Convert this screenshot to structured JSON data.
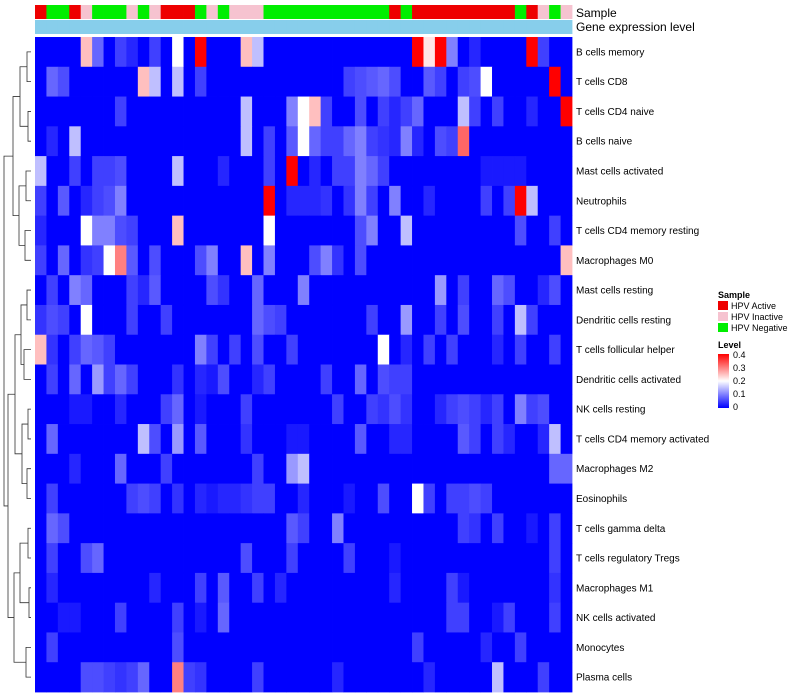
{
  "chart_data": {
    "type": "heatmap",
    "annotation_titles": {
      "sample": "Sample",
      "gene_expression": "Gene expression level"
    },
    "rows": [
      "B cells memory",
      "T cells CD8",
      "T cells CD4 naive",
      "B cells naive",
      "Mast cells activated",
      "Neutrophils",
      "T cells CD4 memory resting",
      "Macrophages M0",
      "Mast cells resting",
      "Dendritic cells resting",
      "T cells follicular helper",
      "Dendritic cells activated",
      "NK cells resting",
      "T cells CD4 memory activated",
      "Macrophages M2",
      "Eosinophils",
      "T cells gamma delta",
      "T cells regulatory  Tregs",
      "Macrophages M1",
      "NK cells activated",
      "Monocytes",
      "Plasma cells"
    ],
    "sample_groups": [
      "A",
      "N",
      "N",
      "A",
      "I",
      "N",
      "N",
      "N",
      "I",
      "N",
      "I",
      "A",
      "A",
      "A",
      "N",
      "I",
      "N",
      "I",
      "I",
      "I",
      "N",
      "N",
      "N",
      "N",
      "N",
      "N",
      "N",
      "N",
      "N",
      "N",
      "N",
      "A",
      "N",
      "A",
      "A",
      "A",
      "A",
      "A",
      "A",
      "A",
      "A",
      "A",
      "N",
      "A",
      "I",
      "N",
      "I"
    ],
    "gene_expression_level": [
      0.9,
      0.9,
      0.9,
      0.9,
      0.9,
      0.9,
      0.9,
      0.9,
      0.9,
      0.9,
      0.9,
      0.9,
      0.9,
      0.9,
      0.9,
      0.9,
      0.9,
      0.9,
      0.9,
      0.9,
      0.9,
      0.9,
      0.9,
      0.9,
      0.9,
      0.9,
      0.9,
      0.9,
      0.9,
      0.9,
      0.9,
      0.9,
      0.9,
      0.9,
      0.9,
      0.9,
      0.9,
      0.9,
      0.9,
      0.9,
      0.9,
      0.9,
      0.9,
      0.9,
      0.9,
      0.9,
      0.9
    ],
    "values": [
      [
        0,
        0,
        0,
        0,
        0.25,
        0.08,
        0,
        0.05,
        0.03,
        0,
        0.05,
        0,
        0.2,
        0,
        0.4,
        0,
        0,
        0,
        0.25,
        0.15,
        0,
        0,
        0,
        0,
        0,
        0,
        0,
        0,
        0,
        0,
        0,
        0,
        0,
        0.4,
        0.22,
        0.4,
        0.1,
        0,
        0.03,
        0,
        0,
        0,
        0,
        0.4,
        0.05,
        0,
        0
      ],
      [
        0,
        0.08,
        0.06,
        0,
        0,
        0,
        0,
        0,
        0,
        0.25,
        0.15,
        0,
        0.15,
        0,
        0.05,
        0,
        0,
        0,
        0,
        0,
        0,
        0,
        0,
        0,
        0,
        0,
        0,
        0.05,
        0.06,
        0.07,
        0.08,
        0.06,
        0,
        0,
        0.07,
        0.05,
        0,
        0.05,
        0.06,
        0.2,
        0,
        0,
        0,
        0,
        0,
        0.4,
        0
      ],
      [
        0,
        0,
        0,
        0,
        0,
        0,
        0,
        0.05,
        0,
        0,
        0,
        0,
        0,
        0,
        0,
        0,
        0,
        0,
        0.15,
        0,
        0,
        0,
        0.1,
        0.2,
        0.25,
        0.05,
        0,
        0,
        0.06,
        0,
        0.05,
        0.03,
        0.05,
        0.08,
        0,
        0,
        0,
        0.15,
        0.05,
        0,
        0.05,
        0,
        0,
        0.03,
        0,
        0,
        0.4
      ],
      [
        0,
        0.03,
        0,
        0.15,
        0,
        0,
        0,
        0,
        0,
        0,
        0,
        0,
        0,
        0,
        0,
        0,
        0,
        0,
        0.15,
        0,
        0.05,
        0,
        0.07,
        0.2,
        0.08,
        0.05,
        0.05,
        0.08,
        0.1,
        0.05,
        0.04,
        0.03,
        0.1,
        0.03,
        0,
        0.06,
        0.05,
        0.32,
        0,
        0,
        0,
        0,
        0,
        0,
        0,
        0,
        0
      ],
      [
        0.15,
        0,
        0,
        0.05,
        0,
        0.05,
        0.05,
        0.06,
        0,
        0,
        0,
        0,
        0.15,
        0,
        0,
        0,
        0.03,
        0,
        0,
        0,
        0.05,
        0,
        0.4,
        0,
        0.03,
        0,
        0.05,
        0.05,
        0.1,
        0.08,
        0.05,
        0,
        0,
        0,
        0,
        0,
        0,
        0,
        0,
        0.02,
        0.02,
        0.02,
        0.02,
        0,
        0,
        0,
        0
      ],
      [
        0.05,
        0,
        0.07,
        0,
        0.03,
        0.05,
        0.06,
        0.1,
        0,
        0,
        0,
        0,
        0,
        0,
        0,
        0,
        0,
        0,
        0,
        0,
        0.4,
        0,
        0.03,
        0.03,
        0.03,
        0.04,
        0,
        0.04,
        0.1,
        0.05,
        0,
        0.1,
        0,
        0,
        0.03,
        0,
        0,
        0,
        0,
        0.05,
        0,
        0.05,
        0.4,
        0.15,
        0,
        0,
        0
      ],
      [
        0.03,
        0,
        0,
        0,
        0.2,
        0.1,
        0.1,
        0.06,
        0.05,
        0,
        0,
        0,
        0.25,
        0,
        0,
        0,
        0,
        0,
        0,
        0,
        0.2,
        0,
        0,
        0,
        0,
        0,
        0,
        0,
        0.06,
        0.1,
        0,
        0,
        0.15,
        0,
        0,
        0,
        0,
        0,
        0,
        0,
        0,
        0,
        0.06,
        0,
        0,
        0.05,
        0
      ],
      [
        0.05,
        0,
        0.08,
        0,
        0.04,
        0.05,
        0.2,
        0.3,
        0.07,
        0,
        0.06,
        0,
        0,
        0,
        0.06,
        0.1,
        0,
        0,
        0.25,
        0,
        0.1,
        0,
        0,
        0,
        0.06,
        0.1,
        0.04,
        0,
        0.06,
        0,
        0,
        0,
        0,
        0,
        0,
        0,
        0,
        0,
        0,
        0,
        0,
        0,
        0,
        0,
        0,
        0,
        0.25
      ],
      [
        0,
        0.05,
        0,
        0.1,
        0.08,
        0,
        0,
        0,
        0.05,
        0.03,
        0.07,
        0,
        0,
        0,
        0,
        0.06,
        0.04,
        0,
        0,
        0.08,
        0,
        0,
        0,
        0.1,
        0,
        0,
        0,
        0,
        0,
        0,
        0,
        0,
        0,
        0,
        0,
        0.12,
        0,
        0.05,
        0,
        0,
        0.08,
        0.06,
        0,
        0,
        0.03,
        0.06,
        0
      ],
      [
        0.04,
        0.06,
        0.05,
        0,
        0.2,
        0,
        0,
        0,
        0.05,
        0,
        0,
        0.05,
        0,
        0,
        0,
        0,
        0,
        0,
        0,
        0.08,
        0.06,
        0.05,
        0,
        0,
        0,
        0,
        0,
        0,
        0,
        0.05,
        0,
        0,
        0.12,
        0,
        0,
        0.05,
        0,
        0.06,
        0,
        0,
        0.05,
        0,
        0.15,
        0.05,
        0,
        0,
        0
      ],
      [
        0.25,
        0.04,
        0,
        0.05,
        0.08,
        0.07,
        0.05,
        0,
        0,
        0,
        0,
        0,
        0,
        0,
        0.1,
        0.05,
        0,
        0.05,
        0,
        0.06,
        0,
        0,
        0.05,
        0,
        0,
        0,
        0,
        0,
        0,
        0,
        0.2,
        0,
        0.03,
        0,
        0.05,
        0,
        0.05,
        0,
        0,
        0,
        0.03,
        0,
        0.05,
        0,
        0,
        0.05,
        0
      ],
      [
        0,
        0.05,
        0,
        0.08,
        0,
        0.12,
        0.05,
        0.08,
        0.05,
        0,
        0,
        0,
        0.04,
        0,
        0.03,
        0.02,
        0.06,
        0,
        0,
        0.03,
        0.05,
        0,
        0,
        0,
        0,
        0.05,
        0,
        0,
        0.08,
        0,
        0.06,
        0.05,
        0.05,
        0,
        0,
        0,
        0,
        0,
        0,
        0,
        0,
        0,
        0,
        0,
        0,
        0,
        0
      ],
      [
        0,
        0,
        0,
        0.02,
        0.02,
        0,
        0,
        0.03,
        0,
        0,
        0,
        0.05,
        0.08,
        0,
        0.02,
        0,
        0,
        0,
        0.05,
        0,
        0,
        0,
        0,
        0,
        0,
        0,
        0.05,
        0,
        0,
        0.05,
        0.04,
        0.06,
        0.04,
        0,
        0,
        0.03,
        0.05,
        0.06,
        0.05,
        0.03,
        0.05,
        0,
        0.1,
        0.05,
        0.06,
        0,
        0
      ],
      [
        0,
        0.08,
        0,
        0,
        0,
        0,
        0,
        0,
        0,
        0.15,
        0.06,
        0,
        0.12,
        0,
        0.07,
        0,
        0,
        0,
        0.04,
        0,
        0,
        0,
        0.02,
        0.02,
        0,
        0,
        0,
        0,
        0.07,
        0,
        0,
        0.03,
        0.03,
        0,
        0,
        0,
        0,
        0.07,
        0.05,
        0,
        0.05,
        0.03,
        0,
        0,
        0.03,
        0.15,
        0
      ],
      [
        0,
        0,
        0,
        0.03,
        0,
        0,
        0,
        0.08,
        0,
        0,
        0,
        0.05,
        0,
        0,
        0,
        0,
        0,
        0,
        0,
        0.05,
        0,
        0,
        0.12,
        0.15,
        0,
        0,
        0,
        0,
        0,
        0,
        0,
        0,
        0,
        0,
        0,
        0,
        0,
        0,
        0,
        0,
        0,
        0,
        0,
        0,
        0,
        0.08,
        0.08
      ],
      [
        0,
        0.05,
        0,
        0,
        0,
        0,
        0,
        0,
        0.05,
        0.06,
        0.05,
        0,
        0.04,
        0,
        0.03,
        0.02,
        0.03,
        0.03,
        0.04,
        0.05,
        0.05,
        0,
        0,
        0.03,
        0,
        0,
        0,
        0.02,
        0,
        0,
        0.06,
        0,
        0,
        0.2,
        0.05,
        0,
        0.05,
        0.05,
        0.06,
        0.05,
        0,
        0,
        0,
        0,
        0,
        0,
        0
      ],
      [
        0,
        0.08,
        0.06,
        0,
        0,
        0,
        0,
        0,
        0,
        0,
        0,
        0,
        0,
        0,
        0,
        0,
        0,
        0,
        0,
        0,
        0,
        0,
        0.07,
        0.05,
        0,
        0,
        0.1,
        0,
        0,
        0,
        0,
        0,
        0,
        0,
        0,
        0,
        0,
        0.05,
        0.04,
        0,
        0.05,
        0,
        0,
        0.02,
        0,
        0.05,
        0
      ],
      [
        0,
        0.05,
        0,
        0,
        0.06,
        0.08,
        0,
        0,
        0,
        0,
        0,
        0,
        0,
        0,
        0,
        0,
        0,
        0,
        0.06,
        0,
        0,
        0,
        0.05,
        0,
        0,
        0,
        0,
        0.05,
        0,
        0,
        0,
        0.02,
        0,
        0,
        0,
        0,
        0,
        0,
        0,
        0,
        0,
        0,
        0,
        0,
        0,
        0.05,
        0
      ],
      [
        0,
        0.03,
        0,
        0,
        0,
        0,
        0,
        0,
        0,
        0,
        0.03,
        0,
        0,
        0,
        0.05,
        0,
        0.07,
        0,
        0,
        0.05,
        0,
        0.03,
        0,
        0,
        0,
        0,
        0,
        0,
        0,
        0,
        0,
        0.03,
        0,
        0,
        0,
        0,
        0.05,
        0.02,
        0,
        0,
        0,
        0,
        0,
        0,
        0,
        0.04,
        0
      ],
      [
        0,
        0,
        0.02,
        0.02,
        0,
        0,
        0,
        0.05,
        0,
        0,
        0,
        0,
        0.05,
        0,
        0.02,
        0,
        0.08,
        0,
        0,
        0,
        0,
        0,
        0,
        0,
        0,
        0,
        0,
        0,
        0,
        0,
        0,
        0,
        0,
        0,
        0,
        0,
        0.05,
        0.05,
        0,
        0,
        0.02,
        0.05,
        0,
        0,
        0,
        0.05,
        0
      ],
      [
        0,
        0.05,
        0,
        0,
        0,
        0,
        0,
        0,
        0,
        0,
        0,
        0,
        0.06,
        0,
        0,
        0,
        0,
        0,
        0,
        0,
        0,
        0,
        0,
        0,
        0,
        0,
        0,
        0,
        0,
        0,
        0,
        0,
        0,
        0.05,
        0,
        0,
        0,
        0,
        0,
        0.03,
        0,
        0,
        0.05,
        0,
        0,
        0,
        0
      ],
      [
        0,
        0,
        0,
        0,
        0.06,
        0.06,
        0.05,
        0.04,
        0.05,
        0.08,
        0,
        0,
        0.3,
        0.05,
        0.04,
        0,
        0,
        0,
        0,
        0.05,
        0,
        0,
        0,
        0,
        0,
        0,
        0.03,
        0,
        0,
        0,
        0,
        0,
        0,
        0,
        0.03,
        0,
        0,
        0,
        0,
        0,
        0.15,
        0,
        0,
        0,
        0.05,
        0,
        0
      ]
    ],
    "legend": {
      "sample_title": "Sample",
      "sample_entries": [
        {
          "key": "A",
          "label": "HPV Active",
          "color": "#ee0000"
        },
        {
          "key": "I",
          "label": "HPV Inactive",
          "color": "#f6c3d0"
        },
        {
          "key": "N",
          "label": "HPV Negative",
          "color": "#00ee00"
        }
      ],
      "level_title": "Level",
      "level_ticks": [
        "0.4",
        "0.3",
        "0.2",
        "0.1",
        "0"
      ],
      "level_range": [
        0,
        0.4
      ]
    },
    "colors": {
      "low": "#0000ff",
      "mid": "#ffffff",
      "high": "#ff0000",
      "gene_bar": "#87ceeb"
    }
  }
}
